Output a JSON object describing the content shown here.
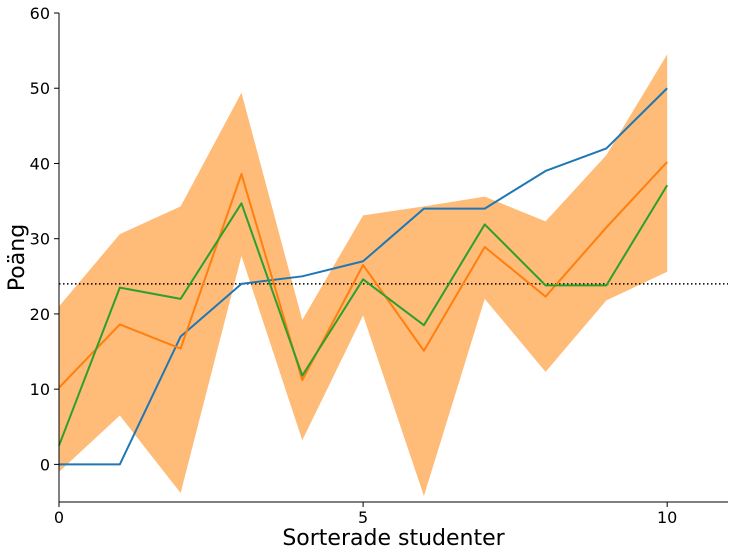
{
  "chart_data": {
    "type": "line",
    "title": "",
    "xlabel": "Sorterade studenter",
    "ylabel": "Poäng",
    "xlim": [
      0,
      11
    ],
    "ylim": [
      -5,
      60
    ],
    "xticks": [
      0,
      5,
      10
    ],
    "yticks": [
      0,
      10,
      20,
      30,
      40,
      50,
      60
    ],
    "grid": false,
    "x": [
      0,
      1,
      2,
      3,
      4,
      5,
      6,
      7,
      8,
      9,
      10
    ],
    "series": [
      {
        "color": "#1f77b4",
        "values": [
          0,
          0,
          17,
          24,
          25,
          27,
          34,
          34,
          39,
          42,
          50
        ]
      },
      {
        "color": "#ff7f0e",
        "values": [
          10.2,
          18.6,
          15.4,
          38.6,
          11.2,
          26.5,
          15.1,
          28.9,
          22.3,
          31.5,
          40.2
        ]
      },
      {
        "color": "#2ca02c",
        "values": [
          2.5,
          23.5,
          22.0,
          34.7,
          11.8,
          24.6,
          18.5,
          31.9,
          23.8,
          23.8,
          37.1
        ]
      }
    ],
    "band": {
      "color": "#ffbb78",
      "lower": [
        -1.0,
        6.5,
        -3.8,
        27.7,
        3.2,
        19.8,
        -4.2,
        22.0,
        12.3,
        21.8,
        25.6
      ],
      "upper": [
        21.0,
        30.6,
        34.3,
        49.4,
        19.2,
        33.1,
        34.3,
        35.6,
        32.3,
        41.1,
        54.5
      ]
    },
    "reference_line": {
      "y": 24,
      "style": "dotted",
      "color": "#000000"
    }
  }
}
